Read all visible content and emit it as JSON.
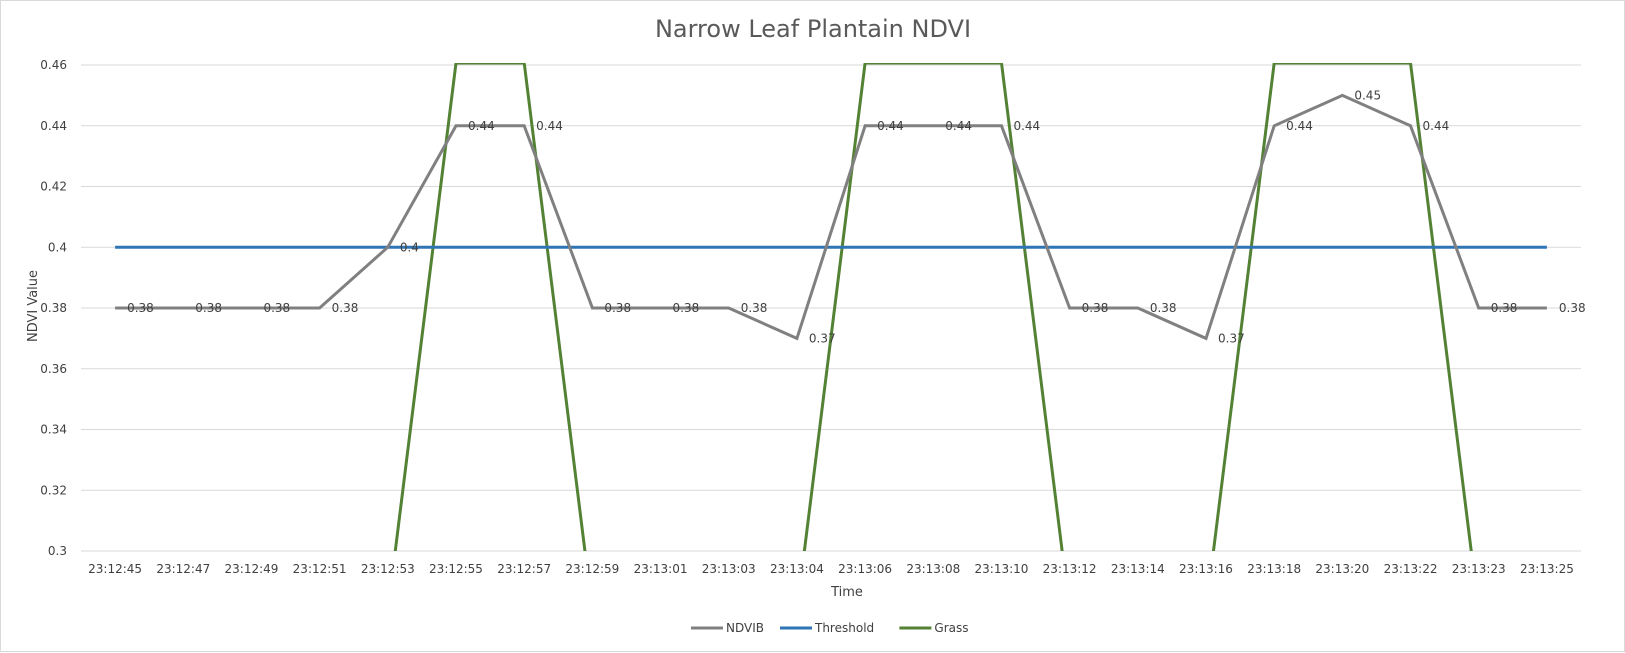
{
  "chart_data": {
    "type": "line",
    "title": "Narrow Leaf Plantain NDVI",
    "xlabel": "Time",
    "ylabel": "NDVI Value",
    "ylim": [
      0.3,
      0.46
    ],
    "yticks": [
      "0.3",
      "0.32",
      "0.34",
      "0.36",
      "0.38",
      "0.4",
      "0.42",
      "0.44",
      "0.46"
    ],
    "categories": [
      "23:12:45",
      "23:12:47",
      "23:12:49",
      "23:12:51",
      "23:12:53",
      "23:12:55",
      "23:12:57",
      "23:12:59",
      "23:13:01",
      "23:13:03",
      "23:13:04",
      "23:13:06",
      "23:13:08",
      "23:13:10",
      "23:13:12",
      "23:13:14",
      "23:13:16",
      "23:13:18",
      "23:13:20",
      "23:13:22",
      "23:13:23",
      "23:13:25"
    ],
    "grid": true,
    "legend_position": "bottom",
    "series": [
      {
        "name": "NDVIB",
        "color": "#808080",
        "values": [
          0.38,
          0.38,
          0.38,
          0.38,
          0.4,
          0.44,
          0.44,
          0.38,
          0.38,
          0.38,
          0.37,
          0.44,
          0.44,
          0.44,
          0.38,
          0.38,
          0.37,
          0.44,
          0.45,
          0.44,
          0.38,
          0.38
        ],
        "data_labels": [
          "0.38",
          "0.38",
          "0.38",
          "0.38",
          "0.4",
          "0.44",
          "0.44",
          "0.38",
          "0.38",
          "0.38",
          "0.37",
          "0.44",
          "0.44",
          "0.44",
          "0.38",
          "0.38",
          "0.37",
          "0.44",
          "0.45",
          "0.44",
          "0.38",
          "0.38"
        ]
      },
      {
        "name": "Threshold",
        "color": "#2e75b6",
        "values": [
          0.4,
          0.4,
          0.4,
          0.4,
          0.4,
          0.4,
          0.4,
          0.4,
          0.4,
          0.4,
          0.4,
          0.4,
          0.4,
          0.4,
          0.4,
          0.4,
          0.4,
          0.4,
          0.4,
          0.4,
          0.4,
          0.4
        ]
      },
      {
        "name": "Grass",
        "color": "#548235",
        "values": [
          0,
          0,
          0,
          0,
          0,
          1,
          1,
          0,
          0,
          0,
          0,
          1,
          1,
          1,
          0,
          0,
          0,
          1,
          1,
          1,
          0,
          0
        ]
      }
    ]
  }
}
